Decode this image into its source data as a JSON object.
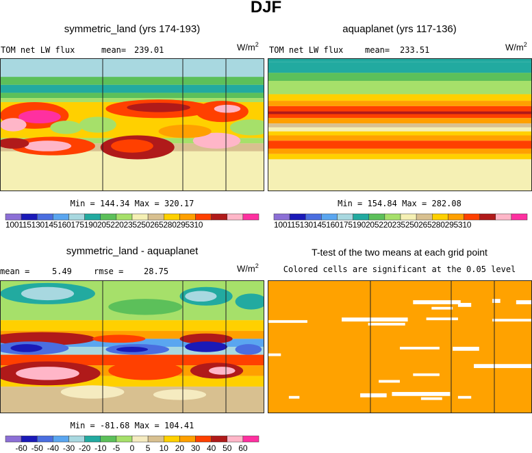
{
  "figure": {
    "title": "DJF",
    "units": "W/m",
    "units_exp": "2"
  },
  "chart_data": [
    {
      "type": "heatmap",
      "title": "symmetric_land (yrs 174-193)",
      "variable": "TOM net LW flux",
      "stat_label": "mean=",
      "stat_value": "239.01",
      "min_label": "Min =",
      "min": 144.34,
      "max_label": "Max =",
      "max": 320.17,
      "colorbar_levels": [
        "100",
        "115",
        "130",
        "145",
        "160",
        "175",
        "190",
        "205",
        "220",
        "235",
        "250",
        "265",
        "280",
        "295",
        "310"
      ],
      "colorbar_text": "100115130145160175190205220235250265280295310"
    },
    {
      "type": "heatmap",
      "title": "aquaplanet (yrs 117-136)",
      "variable": "TOM net LW flux",
      "stat_label": "mean=",
      "stat_value": "233.51",
      "min_label": "Min =",
      "min": 154.84,
      "max_label": "Max =",
      "max": 282.08,
      "colorbar_levels": [
        "100",
        "115",
        "130",
        "145",
        "160",
        "175",
        "190",
        "205",
        "220",
        "235",
        "250",
        "265",
        "280",
        "295",
        "310"
      ],
      "colorbar_text": "100115130145160175190205220235250265280295310"
    },
    {
      "type": "heatmap",
      "title": "symmetric_land - aquaplanet",
      "stat_label": "mean =",
      "stat_value": "5.49",
      "rmse_label": "rmse =",
      "rmse_value": "28.75",
      "min_label": "Min =",
      "min": -81.68,
      "max_label": "Max =",
      "max": 104.41,
      "colorbar_levels": [
        "-60",
        "-50",
        "-40",
        "-30",
        "-20",
        "-10",
        "-5",
        "0",
        "5",
        "10",
        "20",
        "30",
        "40",
        "50",
        "60"
      ]
    },
    {
      "type": "heatmap",
      "title": "T-test of the two means at each grid point",
      "subtitle": "Colored cells are significant at the 0.05 level"
    }
  ],
  "colors": {
    "abs_palette": [
      "#8c6fd6",
      "#1a1ab8",
      "#4a6ee0",
      "#5aa6f0",
      "#a8d8e0",
      "#22aaa0",
      "#5cc05a",
      "#a6e06a",
      "#f5f0b4",
      "#d8c090",
      "#ffd000",
      "#ffa000",
      "#ff4000",
      "#b01a1a",
      "#ffb6c8",
      "#ff30a0"
    ],
    "diff_palette": [
      "#8c6fd6",
      "#1a1ab8",
      "#4a6ee0",
      "#5aa6f0",
      "#a8d8e0",
      "#22aaa0",
      "#5cc05a",
      "#a6e06a",
      "#f5ebc0",
      "#d8c090",
      "#ffd000",
      "#ffa000",
      "#ff4000",
      "#b01a1a",
      "#ffb6c8",
      "#ff30a0"
    ],
    "significance": "#ffa200"
  }
}
